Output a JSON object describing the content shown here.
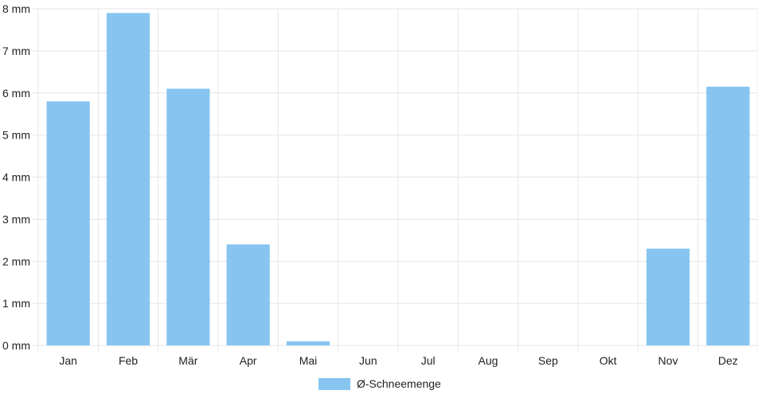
{
  "chart_data": {
    "type": "bar",
    "categories": [
      "Jan",
      "Feb",
      "Mär",
      "Apr",
      "Mai",
      "Jun",
      "Jul",
      "Aug",
      "Sep",
      "Okt",
      "Nov",
      "Dez"
    ],
    "series": [
      {
        "name": "Ø-Schneemenge",
        "values": [
          5.8,
          7.9,
          6.1,
          2.4,
          0.1,
          0,
          0,
          0,
          0,
          0,
          2.3,
          6.15
        ]
      }
    ],
    "ylim": [
      0,
      8
    ],
    "y_ticks": [
      0,
      1,
      2,
      3,
      4,
      5,
      6,
      7,
      8
    ],
    "y_unit": "mm",
    "grid": true,
    "legend_position": "bottom",
    "bar_color": "#87c5f0",
    "grid_color": "#e5e5e5"
  },
  "legend": {
    "label": "Ø-Schneemenge"
  }
}
